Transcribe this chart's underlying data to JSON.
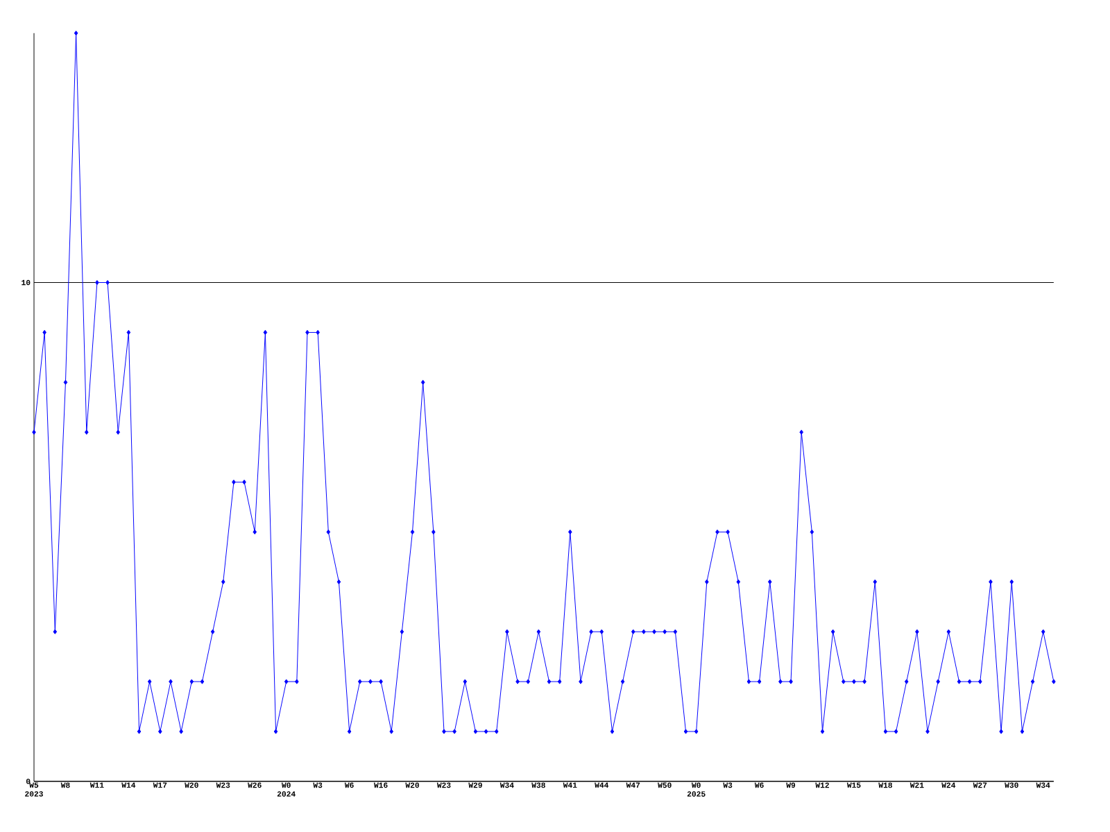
{
  "chart_data": {
    "type": "line",
    "categories": [
      "W5 2023",
      null,
      null,
      "W8",
      null,
      null,
      "W11",
      null,
      null,
      "W14",
      null,
      null,
      "W17",
      null,
      null,
      "W20",
      null,
      null,
      "W23",
      null,
      null,
      "W26",
      null,
      null,
      "W0 2024",
      null,
      null,
      "W3",
      null,
      null,
      "W6",
      null,
      null,
      "W16",
      null,
      null,
      "W20",
      null,
      null,
      "W23",
      null,
      null,
      "W29",
      null,
      null,
      "W34",
      null,
      null,
      "W38",
      null,
      null,
      "W41",
      null,
      null,
      "W44",
      null,
      null,
      "W47",
      null,
      null,
      "W50",
      null,
      null,
      "W0 2025",
      null,
      null,
      "W3",
      null,
      null,
      "W6",
      null,
      null,
      "W9",
      null,
      null,
      "W12",
      null,
      null,
      "W15",
      null,
      null,
      "W18",
      null,
      null,
      "W21",
      null,
      null,
      "W24",
      null,
      null,
      "W27",
      null,
      null,
      "W30",
      null,
      null,
      "W34",
      null
    ],
    "series": [
      {
        "color": "#0000ff",
        "values": [
          7,
          9,
          3,
          8,
          15,
          7,
          10,
          10,
          7,
          9,
          1,
          2,
          1,
          2,
          1,
          2,
          2,
          3,
          4,
          6,
          6,
          5,
          9,
          1,
          2,
          2,
          9,
          9,
          5,
          4,
          1,
          2,
          2,
          2,
          1,
          3,
          5,
          8,
          5,
          1,
          1,
          2,
          1,
          1,
          1,
          3,
          2,
          2,
          3,
          2,
          2,
          5,
          2,
          3,
          3,
          1,
          2,
          3,
          3,
          3,
          3,
          3,
          1,
          1,
          4,
          5,
          5,
          4,
          2,
          2,
          4,
          2,
          2,
          7,
          5,
          1,
          3,
          2,
          2,
          2,
          4,
          1,
          1,
          2,
          3,
          1,
          2,
          3,
          2,
          2,
          2,
          4,
          1,
          4,
          1,
          2,
          3,
          2
        ]
      }
    ],
    "ylim": [
      0,
      15
    ],
    "yticks": [
      0,
      10
    ],
    "grid": "y",
    "marker": "diamond"
  }
}
